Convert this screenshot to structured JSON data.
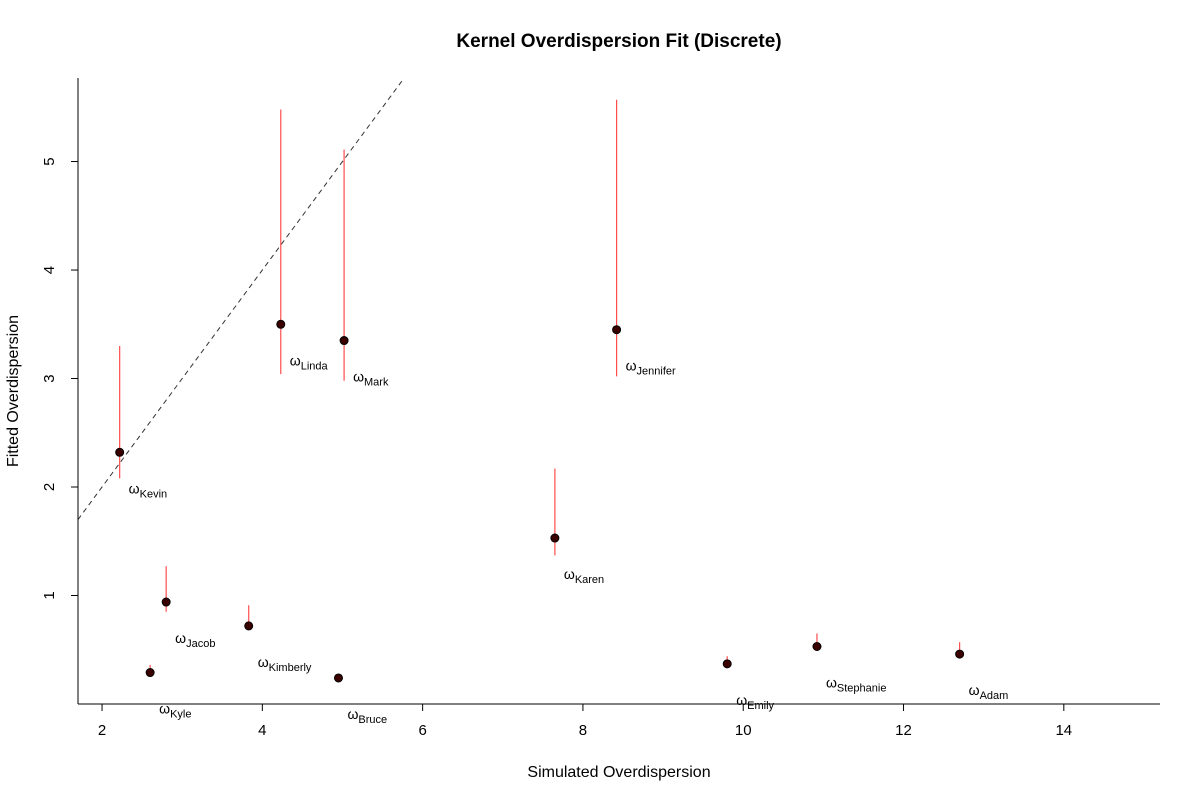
{
  "chart_data": {
    "type": "scatter",
    "title": "Kernel Overdispersion Fit (Discrete)",
    "xlabel": "Simulated Overdispersion",
    "ylabel": "Fitted Overdispersion",
    "xlim": [
      1.7,
      15.2
    ],
    "ylim": [
      0,
      5.77
    ],
    "xticks": [
      2,
      4,
      6,
      8,
      10,
      12,
      14
    ],
    "yticks": [
      1,
      2,
      3,
      4,
      5
    ],
    "reference_line": {
      "type": "identity",
      "style": "dashed",
      "color": "#333333"
    },
    "point_color": "#000000",
    "point_fill": "#3a0000",
    "errorbar_color": "#ff4d4d",
    "label_symbol": "ω",
    "points": [
      {
        "name": "Kevin",
        "x": 2.22,
        "y": 2.32,
        "lower": 2.08,
        "upper": 3.3
      },
      {
        "name": "Kyle",
        "x": 2.6,
        "y": 0.29,
        "lower": 0.26,
        "upper": 0.36
      },
      {
        "name": "Jacob",
        "x": 2.8,
        "y": 0.94,
        "lower": 0.85,
        "upper": 1.27
      },
      {
        "name": "Kimberly",
        "x": 3.83,
        "y": 0.72,
        "lower": 0.68,
        "upper": 0.91
      },
      {
        "name": "Linda",
        "x": 4.23,
        "y": 3.5,
        "lower": 3.04,
        "upper": 5.48
      },
      {
        "name": "Bruce",
        "x": 4.95,
        "y": 0.24,
        "lower": 0.22,
        "upper": 0.28
      },
      {
        "name": "Mark",
        "x": 5.02,
        "y": 3.35,
        "lower": 2.98,
        "upper": 5.11
      },
      {
        "name": "Karen",
        "x": 7.65,
        "y": 1.53,
        "lower": 1.37,
        "upper": 2.17
      },
      {
        "name": "Jennifer",
        "x": 8.42,
        "y": 3.45,
        "lower": 3.02,
        "upper": 5.57
      },
      {
        "name": "Emily",
        "x": 9.8,
        "y": 0.37,
        "lower": 0.34,
        "upper": 0.44
      },
      {
        "name": "Stephanie",
        "x": 10.92,
        "y": 0.53,
        "lower": 0.49,
        "upper": 0.65
      },
      {
        "name": "Adam",
        "x": 12.7,
        "y": 0.46,
        "lower": 0.42,
        "upper": 0.57
      }
    ]
  }
}
